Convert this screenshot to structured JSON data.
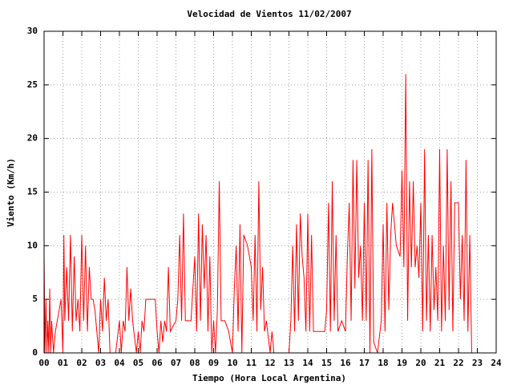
{
  "chart_data": {
    "type": "line",
    "title": "Velocidad de Vientos 11/02/2007",
    "x_label": "Tiempo (Hora Local Argentina)",
    "y_label": "Viento (Km/h)",
    "xlim": [
      0,
      24
    ],
    "ylim": [
      0,
      30
    ],
    "xticks": [
      {
        "value": 0,
        "label": "00"
      },
      {
        "value": 1,
        "label": "01"
      },
      {
        "value": 2,
        "label": "02"
      },
      {
        "value": 3,
        "label": "03"
      },
      {
        "value": 4,
        "label": "04"
      },
      {
        "value": 5,
        "label": "05"
      },
      {
        "value": 6,
        "label": "06"
      },
      {
        "value": 7,
        "label": "07"
      },
      {
        "value": 8,
        "label": "08"
      },
      {
        "value": 9,
        "label": "09"
      },
      10,
      11,
      12,
      13,
      14,
      15,
      16,
      17,
      18,
      19,
      20,
      21,
      22,
      23,
      24
    ],
    "yticks": [
      0,
      5,
      10,
      15,
      20,
      25,
      30
    ],
    "grid": true,
    "color": "#ff0000",
    "x": [
      0.0,
      0.05,
      0.1,
      0.15,
      0.2,
      0.25,
      0.3,
      0.35,
      0.4,
      0.5,
      0.6,
      0.7,
      0.8,
      0.9,
      1.0,
      1.05,
      1.1,
      1.2,
      1.3,
      1.4,
      1.5,
      1.6,
      1.7,
      1.8,
      1.9,
      2.0,
      2.1,
      2.2,
      2.3,
      2.4,
      2.5,
      2.6,
      2.7,
      2.8,
      2.9,
      3.0,
      3.1,
      3.2,
      3.3,
      3.4,
      3.5,
      3.6,
      3.8,
      4.0,
      4.1,
      4.2,
      4.3,
      4.4,
      4.5,
      4.6,
      4.7,
      4.9,
      5.0,
      5.1,
      5.2,
      5.3,
      5.4,
      5.5,
      5.9,
      6.0,
      6.1,
      6.2,
      6.3,
      6.4,
      6.5,
      6.6,
      6.7,
      7.0,
      7.1,
      7.2,
      7.3,
      7.4,
      7.5,
      7.6,
      7.8,
      8.0,
      8.1,
      8.2,
      8.3,
      8.4,
      8.5,
      8.6,
      8.7,
      8.8,
      8.9,
      9.0,
      9.1,
      9.2,
      9.3,
      9.4,
      9.6,
      9.8,
      10.0,
      10.1,
      10.2,
      10.3,
      10.4,
      10.5,
      10.6,
      10.8,
      11.0,
      11.1,
      11.2,
      11.3,
      11.4,
      11.5,
      11.6,
      11.7,
      11.8,
      12.0,
      12.1,
      12.2,
      12.3,
      13.0,
      13.1,
      13.2,
      13.3,
      13.4,
      13.5,
      13.6,
      13.7,
      13.8,
      13.9,
      14.0,
      14.1,
      14.2,
      14.3,
      14.5,
      14.9,
      15.0,
      15.1,
      15.2,
      15.3,
      15.4,
      15.5,
      15.6,
      15.8,
      16.0,
      16.1,
      16.2,
      16.3,
      16.4,
      16.5,
      16.6,
      16.7,
      16.8,
      16.9,
      17.0,
      17.1,
      17.2,
      17.3,
      17.4,
      17.5,
      17.7,
      17.9,
      18.0,
      18.1,
      18.2,
      18.3,
      18.4,
      18.5,
      18.7,
      18.9,
      19.0,
      19.1,
      19.2,
      19.3,
      19.4,
      19.5,
      19.6,
      19.7,
      19.8,
      19.9,
      20.0,
      20.1,
      20.2,
      20.3,
      20.4,
      20.5,
      20.6,
      20.7,
      20.8,
      20.9,
      21.0,
      21.1,
      21.2,
      21.3,
      21.4,
      21.5,
      21.6,
      21.7,
      21.8,
      22.0,
      22.1,
      22.2,
      22.3,
      22.4,
      22.5,
      22.6,
      22.7,
      22.8
    ],
    "values": [
      9,
      0,
      5,
      0,
      3,
      0,
      6,
      0,
      3,
      0,
      2,
      3,
      4,
      5,
      0,
      11,
      3,
      8,
      3,
      11,
      2,
      9,
      3,
      5,
      2,
      11,
      3,
      10,
      2,
      8,
      5,
      5,
      4,
      2,
      0,
      5,
      2,
      7,
      3,
      5,
      0,
      0,
      0,
      3,
      0,
      3,
      2,
      8,
      3,
      6,
      3,
      0,
      2,
      0,
      3,
      2,
      5,
      5,
      5,
      2,
      0,
      3,
      1,
      3,
      2,
      8,
      2,
      3,
      5,
      11,
      3,
      13,
      3,
      3,
      3,
      9,
      2,
      13,
      3,
      12,
      6,
      11,
      2,
      9,
      0,
      3,
      0,
      4,
      16,
      3,
      3,
      2,
      0,
      6,
      10,
      2,
      12,
      0,
      11,
      10,
      8,
      3,
      11,
      2,
      16,
      4,
      8,
      2,
      3,
      0,
      2,
      0,
      0,
      0,
      3,
      10,
      2,
      12,
      3,
      13,
      9,
      7,
      2,
      13,
      2,
      11,
      2,
      2,
      2,
      4,
      14,
      2,
      16,
      3,
      11,
      2,
      3,
      2,
      9,
      14,
      3,
      18,
      6,
      18,
      7,
      10,
      3,
      14,
      3,
      18,
      0,
      19,
      1,
      0,
      3,
      12,
      2,
      14,
      4,
      11,
      14,
      10,
      9,
      17,
      8,
      26,
      3,
      16,
      8,
      16,
      8,
      10,
      7,
      14,
      2,
      19,
      3,
      11,
      2,
      11,
      4,
      8,
      3,
      19,
      2,
      10,
      3,
      19,
      4,
      16,
      2,
      14,
      14,
      5,
      11,
      3,
      18,
      2,
      11,
      0,
      0
    ]
  }
}
